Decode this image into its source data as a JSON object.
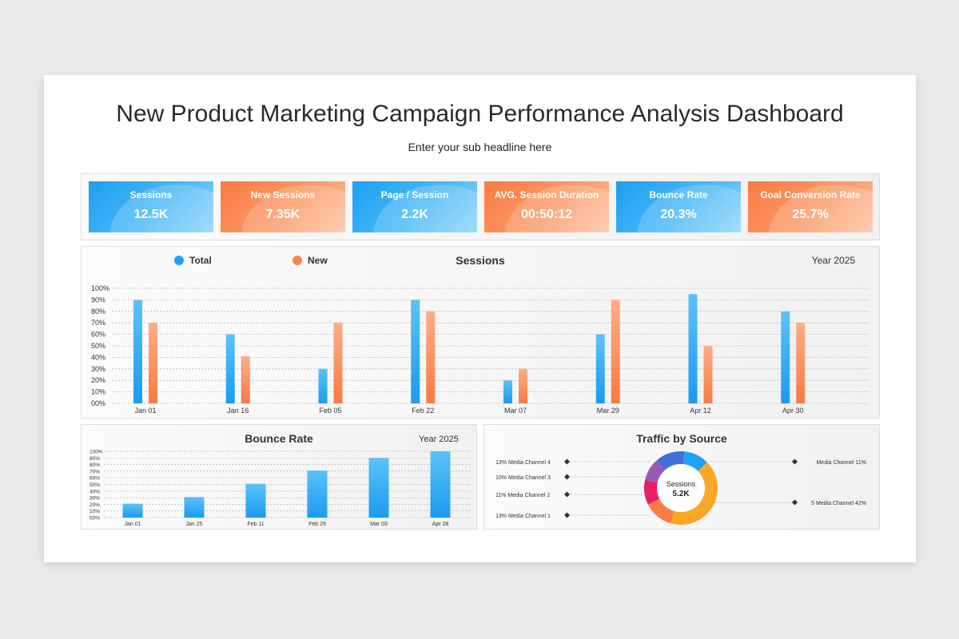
{
  "header": {
    "title": "New Product Marketing Campaign Performance Analysis Dashboard",
    "subtitle": "Enter your sub headline here"
  },
  "kpis": [
    {
      "label": "Sessions",
      "value": "12.5K",
      "color": "blue"
    },
    {
      "label": "New Sessions",
      "value": "7.35K",
      "color": "orange"
    },
    {
      "label": "Page / Session",
      "value": "2.2K",
      "color": "blue"
    },
    {
      "label": "AVG. Session Duration",
      "value": "00:50:12",
      "color": "orange"
    },
    {
      "label": "Bounce Rate",
      "value": "20.3%",
      "color": "blue"
    },
    {
      "label": "Goal Conversion Rate",
      "value": "25.7%",
      "color": "orange"
    }
  ],
  "colors": {
    "blue": "#1ea3f2",
    "orange": "#fb8550"
  },
  "chart_data": [
    {
      "type": "bar",
      "title": "Sessions",
      "year_label": "Year 2025",
      "categories": [
        "Jan 01",
        "Jan 16",
        "Feb 05",
        "Feb 22",
        "Mar 07",
        "Mar 29",
        "Apr 12",
        "Apr 30"
      ],
      "series": [
        {
          "name": "Total",
          "values": [
            90,
            60,
            30,
            90,
            20,
            60,
            95,
            80
          ]
        },
        {
          "name": "New",
          "values": [
            70,
            41,
            70,
            80,
            30,
            90,
            50,
            70
          ]
        }
      ],
      "yticks": [
        "00%",
        "10%",
        "20%",
        "30%",
        "40%",
        "50%",
        "60%",
        "70%",
        "80%",
        "90%",
        "100%"
      ],
      "ylim": [
        0,
        100
      ],
      "grid": true,
      "legend": "top-left"
    },
    {
      "type": "bar",
      "title": "Bounce Rate",
      "year_label": "Year 2025",
      "categories": [
        "Jan 01",
        "Jan 25",
        "Feb 11",
        "Feb 29",
        "Mar 03",
        "Apr 28"
      ],
      "values": [
        21,
        31,
        51,
        71,
        90,
        100
      ],
      "yticks": [
        "00%",
        "10%",
        "20%",
        "30%",
        "40%",
        "50%",
        "60%",
        "70%",
        "80%",
        "90%",
        "100%"
      ],
      "ylim": [
        0,
        100
      ],
      "grid": true
    },
    {
      "type": "pie",
      "title": "Traffic by Source",
      "center_label": "Sessions",
      "center_value": "5.2K",
      "left_labels": [
        "13% Media Channel 4",
        "10% Media Channel 3",
        "11% Media Channel 2",
        "13% Media Channel 1"
      ],
      "right_labels": [
        "Media Channel 11%",
        "5 Media Channel 42%"
      ],
      "slices": [
        {
          "value": 11,
          "color": "#1ea3f2"
        },
        {
          "value": 42,
          "color": "#f9a825"
        },
        {
          "value": 13,
          "color": "#fb7b42"
        },
        {
          "value": 11,
          "color": "#e91e63"
        },
        {
          "value": 10,
          "color": "#9b59b6"
        },
        {
          "value": 13,
          "color": "#3f6fd8"
        }
      ]
    }
  ]
}
